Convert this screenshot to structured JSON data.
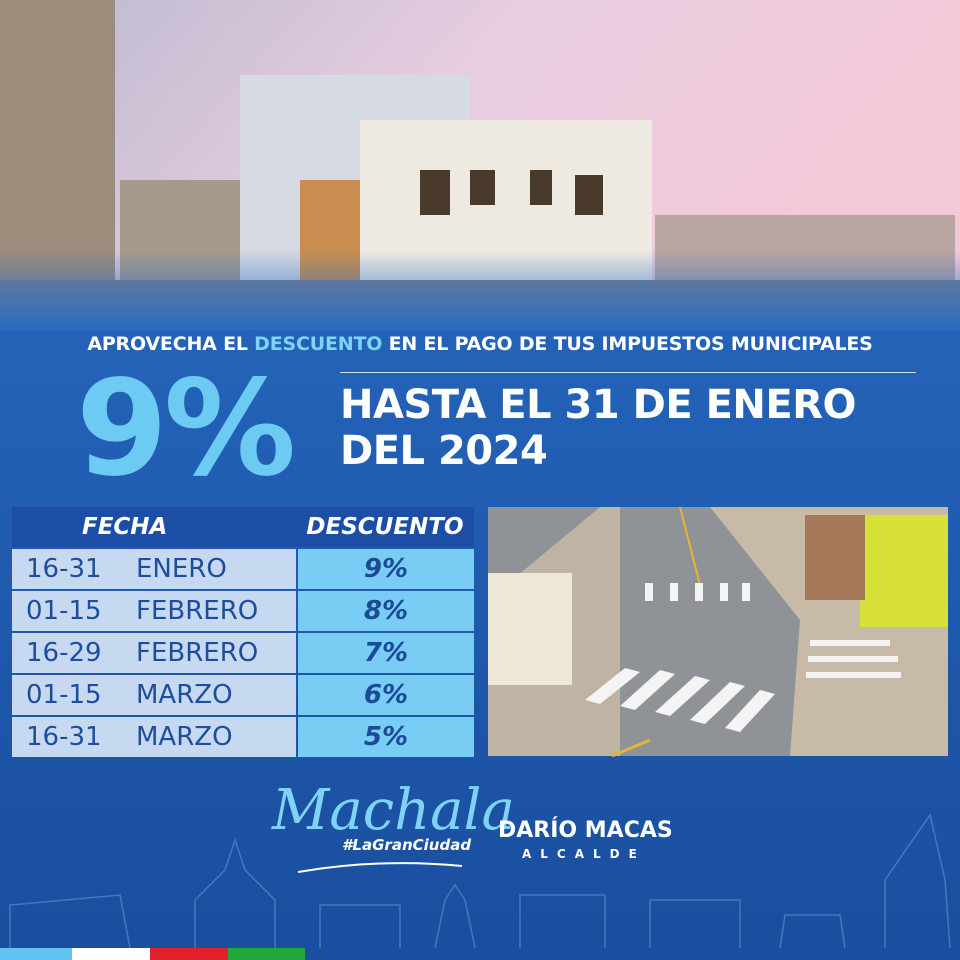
{
  "headline": {
    "parts": [
      "APROVECHA EL",
      "DESCUENTO",
      "EN EL PAGO DE TUS IMPUESTOS MUNICIPALES"
    ]
  },
  "big_discount": "9%",
  "deadline": {
    "line1": "HASTA EL 31 DE ENERO",
    "line2": "DEL 2024"
  },
  "table": {
    "headers": [
      "FECHA",
      "DESCUENTO"
    ],
    "rows": [
      [
        "16-31",
        "ENERO",
        "9%"
      ],
      [
        "01-15",
        "FEBRERO",
        "8%"
      ],
      [
        "16-29",
        "FEBRERO",
        "7%"
      ],
      [
        "01-15",
        "MARZO",
        "6%"
      ],
      [
        "16-31",
        "MARZO",
        "5%"
      ]
    ]
  },
  "logo": {
    "city": "Machala",
    "hashtag": "#LaGranCiudad"
  },
  "mayor": {
    "name": "DARÍO MACAS",
    "role": "ALCALDE"
  }
}
